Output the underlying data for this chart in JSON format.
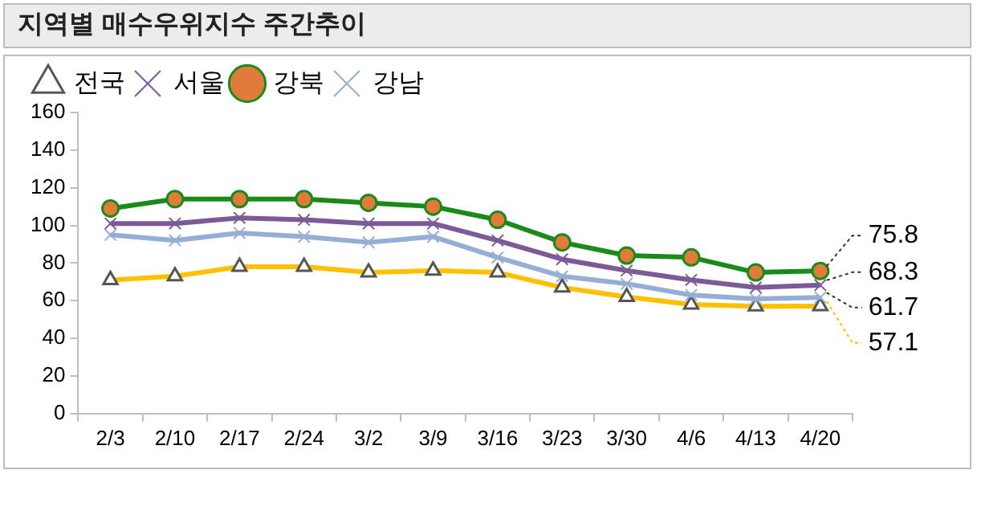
{
  "chart_data": {
    "type": "line",
    "title": "지역별 매수우위지수 주간추이",
    "categories": [
      "2/3",
      "2/10",
      "2/17",
      "2/24",
      "3/2",
      "3/9",
      "3/16",
      "3/23",
      "3/30",
      "4/6",
      "4/13",
      "4/20"
    ],
    "series": [
      {
        "name": "전국",
        "color": "#ffc000",
        "marker": "triangle",
        "values": [
          71,
          73,
          78,
          78,
          75,
          76,
          75,
          67,
          62,
          58,
          57,
          57.1
        ],
        "value_labels": [
          null,
          null,
          null,
          null,
          null,
          null,
          null,
          null,
          null,
          null,
          null,
          "57.1"
        ]
      },
      {
        "name": "서울",
        "color": "#7b5a97",
        "marker": "cross",
        "values": [
          101,
          101,
          104,
          103,
          101,
          101,
          92,
          82,
          76,
          71,
          67,
          68.3
        ],
        "value_labels": [
          null,
          null,
          null,
          null,
          null,
          null,
          null,
          null,
          null,
          null,
          null,
          "68.3"
        ]
      },
      {
        "name": "강북",
        "color": "#1a8a1a",
        "marker": "circle",
        "values": [
          109,
          114,
          114,
          114,
          112,
          110,
          103,
          91,
          84,
          83,
          75,
          75.8
        ],
        "value_labels": [
          null,
          null,
          null,
          null,
          null,
          null,
          null,
          null,
          null,
          null,
          null,
          "75.8"
        ]
      },
      {
        "name": "강남",
        "color": "#95aed6",
        "marker": "cross",
        "values": [
          95,
          92,
          96,
          94,
          91,
          94,
          83,
          73,
          69,
          63,
          61,
          61.7
        ],
        "value_labels": [
          null,
          null,
          null,
          null,
          null,
          null,
          null,
          null,
          null,
          null,
          null,
          "61.7"
        ]
      }
    ],
    "ylim": [
      0,
      160
    ],
    "yticks": [
      0,
      20,
      40,
      60,
      80,
      100,
      120,
      140,
      160
    ],
    "legend": "top left",
    "grid": false
  }
}
